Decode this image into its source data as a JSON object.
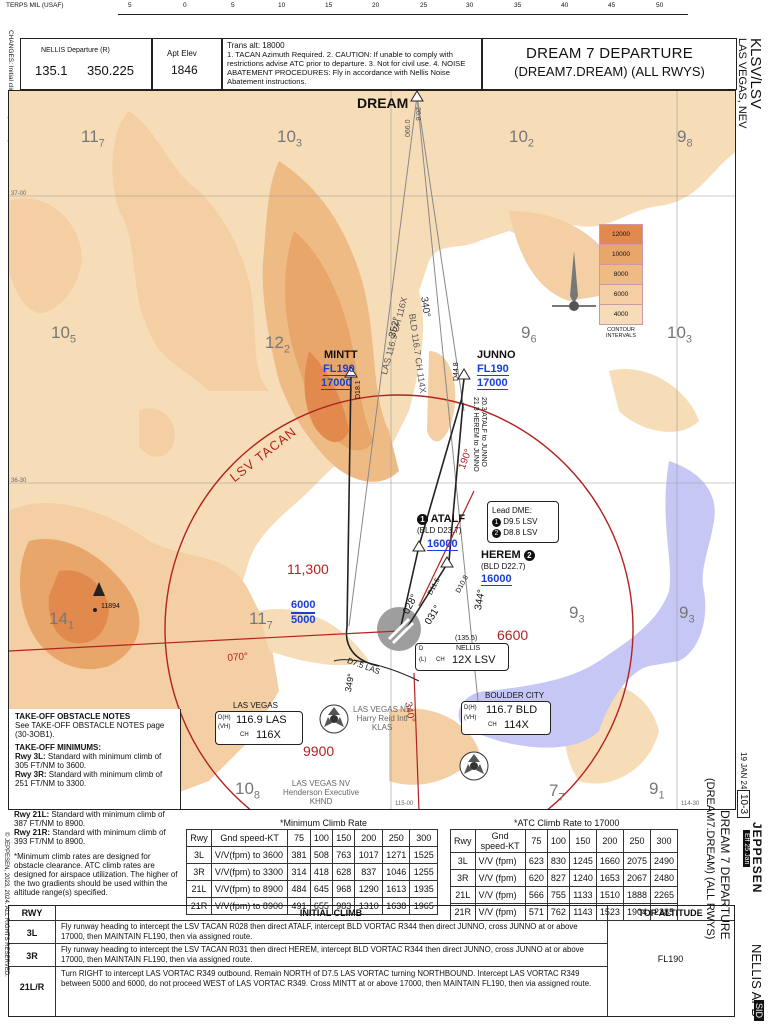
{
  "header": {
    "terps": "TERPS MIL (USAF)",
    "scale_ticks": [
      "5",
      "0",
      "5",
      "10",
      "15",
      "20",
      "25",
      "30",
      "35",
      "40",
      "45",
      "50"
    ],
    "changes": "CHANGES: Initial climb description, top altitude.",
    "freq_label": "NELLIS Departure (R)",
    "freq_1": "135.1",
    "freq_2": "350.225",
    "elev_label": "Apt Elev",
    "elev_value": "1846",
    "notes_title": "Trans alt: 18000",
    "notes_body": "1. TACAN Azimuth Required. 2. CAUTION: If unable to comply with restrictions advise ATC prior to departure. 3. Not for civil use. 4. NOISE ABATEMENT PROCEDURES: Fly in accordance with Nellis Noise Abatement instructions.",
    "proc_name": "DREAM 7 DEPARTURE",
    "proc_code": "(DREAM7.DREAM) (ALL RWYS)",
    "airport_id": "KLSV/LSV",
    "airport_city": "LAS VEGAS, NEV"
  },
  "map": {
    "grid": {
      "lat_37": "37-00",
      "lat_3630": "36-30",
      "lon_115": "115-00",
      "lon_11430": "114-30"
    },
    "mora": [
      {
        "id": "mora-117-nw",
        "main": "11",
        "sub": "7"
      },
      {
        "id": "mora-103-n",
        "main": "10",
        "sub": "3"
      },
      {
        "id": "mora-102-ne",
        "main": "10",
        "sub": "2"
      },
      {
        "id": "mora-98",
        "main": "9",
        "sub": "8"
      },
      {
        "id": "mora-105",
        "main": "10",
        "sub": "5"
      },
      {
        "id": "mora-122",
        "main": "12",
        "sub": "2"
      },
      {
        "id": "mora-96",
        "main": "9",
        "sub": "6"
      },
      {
        "id": "mora-103-e",
        "main": "10",
        "sub": "3"
      },
      {
        "id": "mora-141",
        "main": "14",
        "sub": "1"
      },
      {
        "id": "mora-117-c",
        "main": "11",
        "sub": "7"
      },
      {
        "id": "mora-93-a",
        "main": "9",
        "sub": "3"
      },
      {
        "id": "mora-93-b",
        "main": "9",
        "sub": "3"
      },
      {
        "id": "mora-108",
        "main": "10",
        "sub": "8"
      },
      {
        "id": "mora-77",
        "main": "7",
        "sub": "7"
      },
      {
        "id": "mora-91",
        "main": "9",
        "sub": "1"
      }
    ],
    "dream": {
      "label": "DREAM",
      "r1": "066.0",
      "r2": "20.8"
    },
    "mintt": {
      "label": "MINTT",
      "fl": "FL190",
      "alt": "17000",
      "dist": "D18.1"
    },
    "junno": {
      "label": "JUNNO",
      "fl": "FL190",
      "alt": "17000",
      "dist": "D44.8"
    },
    "atalf": {
      "num": "1",
      "label": "ATALF",
      "dme": "(BLD D23.7)",
      "alt": "16000"
    },
    "herem": {
      "num": "2",
      "label": "HEREM",
      "dme": "(BLD D22.7)",
      "alt": "16000"
    },
    "radial_labels": {
      "r352": "352°",
      "las_ch": "LAS 116.9 CH 116X",
      "r340": "340°",
      "bld_ch": "BLD 116.7 CH 114X",
      "r190": "190°",
      "atalf_junno": "20.3 ATALF to JUNNO",
      "herem_junno": "21.3 HEREM to JUNNO",
      "r028": "028°",
      "r031": "031°",
      "d115": "D11.5",
      "d108": "D10.8",
      "r344": "344°",
      "r070": "070°",
      "d75": "D7.5 LAS",
      "r349": "349°",
      "r340b": "340°"
    },
    "lead_dme": {
      "title": "Lead DME:",
      "l1": "D9.5 LSV",
      "l2": "D8.8 LSV",
      "n1": "1",
      "n2": "2"
    },
    "tacan_arc": "LSV TACAN",
    "msa": {
      "a": "11,300",
      "b": "6600",
      "c": "9900"
    },
    "alt_restrict": {
      "above": "6000",
      "below": "5000"
    },
    "nellis": {
      "freq": "(135.5)",
      "name": "NELLIS",
      "d": "D",
      "l": "(L)",
      "ch": "CH",
      "chan": "12X LSV"
    },
    "las_vortac": {
      "name": "LAS VEGAS",
      "dh": "D(H)",
      "vh": "(VH)",
      "freq": "116.9 LAS",
      "ch": "CH",
      "chan": "116X"
    },
    "boulder": {
      "name": "BOULDER CITY",
      "dh": "D(H)",
      "vh": "(VH)",
      "freq": "116.7 BLD",
      "ch": "CH",
      "chan": "114X"
    },
    "harry_reid": {
      "l1": "LAS VEGAS NV",
      "l2": "Harry Reid Intl",
      "l3": "KLAS"
    },
    "henderson": {
      "l1": "LAS VEGAS NV",
      "l2": "Henderson Executive",
      "l3": "KHND"
    },
    "peak": "11894",
    "legend": {
      "values": [
        "12000",
        "10000",
        "8000",
        "6000",
        "4000"
      ],
      "caption": "CONTOUR INTERVALS"
    }
  },
  "takeoff": {
    "title1": "TAKE-OFF OBSTACLE NOTES",
    "body1": "See TAKE-OFF OBSTACLE NOTES page (30-3OB1).",
    "title2": "TAKE-OFF MINIMUMS:",
    "rows": [
      {
        "rwy": "Rwy 3L:",
        "text": "Standard with minimum climb of 305 FT/NM to 3600."
      },
      {
        "rwy": "Rwy 3R:",
        "text": "Standard with minimum climb of 251 FT/NM to 3300."
      },
      {
        "rwy": "Rwy 21L:",
        "text": "Standard with minimum climb of 387 FT/NM to 8900."
      },
      {
        "rwy": "Rwy 21R:",
        "text": "Standard with minimum climb of 393 FT/NM to 8900."
      }
    ],
    "note": "*Minimum climb rates are designed for obstacle clearance. ATC climb rates are designed for airspace utilization. The higher of the two gradients should be used within the altitude range(s) specified."
  },
  "min_climb": {
    "title": "*Minimum Climb Rate",
    "head": [
      "Rwy",
      "Gnd speed-KT",
      "75",
      "100",
      "150",
      "200",
      "250",
      "300"
    ],
    "rows": [
      [
        "3L",
        "V/V(fpm) to 3600",
        "381",
        "508",
        "763",
        "1017",
        "1271",
        "1525"
      ],
      [
        "3R",
        "V/V(fpm) to 3300",
        "314",
        "418",
        "628",
        "837",
        "1046",
        "1255"
      ],
      [
        "21L",
        "V/V(fpm) to 8900",
        "484",
        "645",
        "968",
        "1290",
        "1613",
        "1935"
      ],
      [
        "21R",
        "V/V(fpm) to 8900",
        "491",
        "655",
        "983",
        "1310",
        "1638",
        "1965"
      ]
    ]
  },
  "atc_climb": {
    "title": "*ATC Climb Rate to 17000",
    "head": [
      "Rwy",
      "Gnd speed-KT",
      "75",
      "100",
      "150",
      "200",
      "250",
      "300"
    ],
    "rows": [
      [
        "3L",
        "V/V (fpm)",
        "623",
        "830",
        "1245",
        "1660",
        "2075",
        "2490"
      ],
      [
        "3R",
        "V/V (fpm)",
        "620",
        "827",
        "1240",
        "1653",
        "2067",
        "2480"
      ],
      [
        "21L",
        "V/V (fpm)",
        "566",
        "755",
        "1133",
        "1510",
        "1888",
        "2265"
      ],
      [
        "21R",
        "V/V (fpm)",
        "571",
        "762",
        "1143",
        "1523",
        "1904",
        "2285"
      ]
    ]
  },
  "initial_climb": {
    "h_rwy": "RWY",
    "h_climb": "INITIAL CLIMB",
    "h_top": "TOP ALTITUDE",
    "rows": [
      {
        "rwy": "3L",
        "text": "Fly runway heading to intercept the LSV TACAN R028 then direct ATALF, intercept BLD VORTAC R344 then direct JUNNO, cross JUNNO at or above 17000, then MAINTAIN FL190, then via assigned route."
      },
      {
        "rwy": "3R",
        "text": "Fly runway heading to intercept the LSV TACAN R031 then direct HEREM, intercept BLD VORTAC R344 then direct JUNNO, cross JUNNO at or above 17000, then MAINTAIN FL190, then via assigned route."
      },
      {
        "rwy": "21L/R",
        "text": "Turn RIGHT to intercept LAS VORTAC R349 outbound. Remain NORTH of D7.5 LAS VORTAC turning NORTHBOUND. Intercept LAS VORTAC R349 between 5000 and 6000, do not proceed WEST of LAS VORTAC R349. Cross MINTT at or above 17000, then MAINTAIN FL190, then via assigned route."
      }
    ],
    "top_alt": "FL190"
  },
  "side": {
    "jeppesen": "JEPPESEN",
    "date": "19 JAN 24",
    "chart_no": "10-3",
    "eff": "Eff 25 Jan",
    "proc": "DREAM 7 DEPARTURE",
    "code": "(DREAM7.DREAM) (ALL RWYS)",
    "nellis": "NELLIS AFB",
    "sid": "SID",
    "copyright": "© JEPPESEN, 2023, 2024. ALL RIGHTS RESERVED."
  }
}
